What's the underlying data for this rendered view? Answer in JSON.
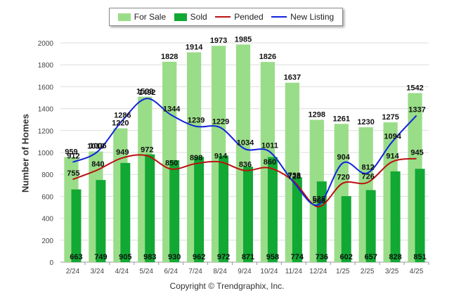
{
  "chart_data": {
    "type": "bar",
    "categories": [
      "2/24",
      "3/24",
      "4/24",
      "5/24",
      "6/24",
      "7/24",
      "8/24",
      "9/24",
      "10/24",
      "11/24",
      "12/24",
      "1/25",
      "2/25",
      "3/25",
      "4/25"
    ],
    "ylabel": "Number of Homes",
    "ylim": [
      0,
      2000
    ],
    "yticks": [
      0,
      200,
      400,
      600,
      800,
      1000,
      1200,
      1400,
      1600,
      1800,
      2000
    ],
    "grid": true,
    "legend_position": "top",
    "series": [
      {
        "name": "For Sale",
        "type": "bar",
        "color": "#99dd88",
        "values": [
          959,
          1010,
          1220,
          1509,
          1828,
          1914,
          1973,
          1985,
          1826,
          1637,
          1298,
          1261,
          1230,
          1275,
          1542
        ]
      },
      {
        "name": "Sold",
        "type": "bar",
        "color": "#11a833",
        "values": [
          663,
          749,
          905,
          983,
          930,
          962,
          972,
          871,
          958,
          774,
          736,
          602,
          657,
          828,
          851
        ]
      },
      {
        "name": "Pended",
        "type": "line",
        "color": "#bb1111",
        "values": [
          755,
          840,
          949,
          972,
          850,
          898,
          914,
          836,
          860,
          738,
          505,
          720,
          726,
          914,
          945
        ]
      },
      {
        "name": "New Listing",
        "type": "line",
        "color": "#1122dd",
        "values": [
          912,
          1006,
          1286,
          1492,
          1344,
          1239,
          1229,
          1034,
          1011,
          728,
          523,
          904,
          812,
          1094,
          1337
        ]
      }
    ]
  },
  "footer": {
    "credit": "Copyright © Trendgraphix, Inc."
  }
}
